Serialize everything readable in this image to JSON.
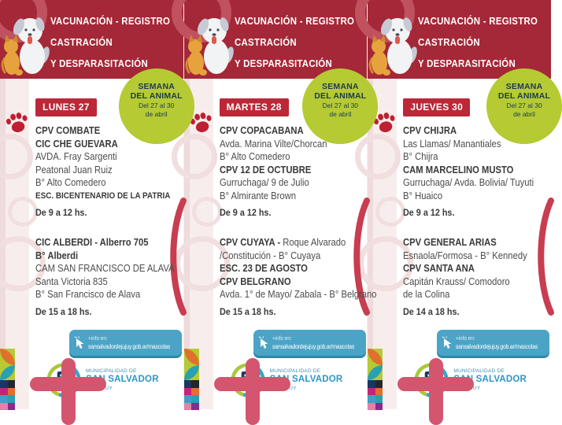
{
  "flyer": {
    "title_lines": [
      "VACUNACIÓN - REGISTRO",
      "CASTRACIÓN",
      "Y DESPARASITACIÓN"
    ],
    "week_badge": {
      "line1": "SEMANA",
      "line2": "DEL ANIMAL",
      "line3": "Del 27 al 30",
      "line4": "de abril"
    },
    "info_bar": {
      "prefix": "+info en:",
      "url": "sansalvadordejujuy.gob.ar/mascotas"
    },
    "logo": {
      "top": "MUNICIPALIDAD DE",
      "name": "SAN SALVADOR",
      "bottom": "DE JUJUY"
    }
  },
  "panels": [
    {
      "day": "LUNES 27",
      "sections": [
        {
          "lines": [
            {
              "b": "CPV COMBATE"
            },
            {
              "b": "CIC CHE GUEVARA"
            },
            {
              "r": "AVDA. Fray Sargenti"
            },
            {
              "r": "Peatonal Juan Ruiz"
            },
            {
              "r": "B° Alto Comedero"
            },
            {
              "b": "ESC. BICENTENARIO DE LA PATRIA",
              "cls": "small"
            },
            {
              "b": "De 9 a 12 hs.",
              "cls": "time"
            }
          ]
        },
        {
          "lines": [
            {
              "b": "CIC ALBERDI - Alberro 705"
            },
            {
              "b": "B° Alberdi"
            },
            {
              "r": "CAM SAN FRANCISCO DE ALAVA"
            },
            {
              "r": "Santa Victoria 835"
            },
            {
              "r": "B° San Francisco de Alava"
            },
            {
              "b": "De 15 a 18 hs.",
              "cls": "time"
            }
          ]
        }
      ]
    },
    {
      "day": "MARTES 28",
      "sections": [
        {
          "lines": [
            {
              "b": "CPV COPACABANA"
            },
            {
              "r": "Avda. Marina Vilte/Chorcan"
            },
            {
              "r": "B° Alto Comedero"
            },
            {
              "b": "CPV 12 DE OCTUBRE"
            },
            {
              "r": "Gurruchaga/ 9 de Julio"
            },
            {
              "r": "B° Almirante Brown"
            },
            {
              "b": "De 9 a 12 hs.",
              "cls": "time"
            }
          ]
        },
        {
          "lines": [
            {
              "b": "CPV CUYAYA - ",
              "r": "Roque Alvarado"
            },
            {
              "r": "/Constitución - B° Cuyaya"
            },
            {
              "b": "ESC. 23 DE AGOSTO"
            },
            {
              "b": "CPV BELGRANO"
            },
            {
              "r": "Avda. 1° de Mayo/ Zabala - B° Belgrano"
            },
            {
              "b": "De 15 a 18 hs.",
              "cls": "time"
            }
          ]
        }
      ]
    },
    {
      "day": "JUEVES 30",
      "sections": [
        {
          "lines": [
            {
              "b": "CPV CHIJRA"
            },
            {
              "r": "Las Llamas/ Manantiales"
            },
            {
              "r": "B° Chijra"
            },
            {
              "b": "CAM MARCELINO MUSTO"
            },
            {
              "r": "Gurruchaga/ Avda. Bolivia/ Tuyuti"
            },
            {
              "r": "B° Huaico"
            },
            {
              "b": "De 9 a 12 hs.",
              "cls": "time"
            }
          ]
        },
        {
          "lines": [
            {
              "b": "CPV GENERAL ARIAS"
            },
            {
              "r": "Esnaola/Formosa - B° Kennedy"
            },
            {
              "b": "CPV SANTA ANA"
            },
            {
              "r": "Capitán Krauss/ Comodoro"
            },
            {
              "r": "de la Colina"
            },
            {
              "b": "De 14 a 18 hs.",
              "cls": "time"
            }
          ]
        }
      ]
    }
  ],
  "colors": {
    "header_red": "#a42837",
    "badge_red": "#bb2838",
    "lime": "#b5ca33",
    "navy_text": "#1e3a4e",
    "info_blue": "#4ba4c6",
    "logo_blue": "#2e96c3",
    "logo_green": "#a9c83b",
    "cross_rose": "#d4556e",
    "paw_red": "#bf1f31",
    "pink_strip": "#f8eded",
    "mosaic": [
      "#17395f",
      "#23262e",
      "#bf2679",
      "#e0702d",
      "#3f9fc9",
      "#2aa0b4",
      "#e77fa8",
      "#8b2a8c"
    ]
  }
}
